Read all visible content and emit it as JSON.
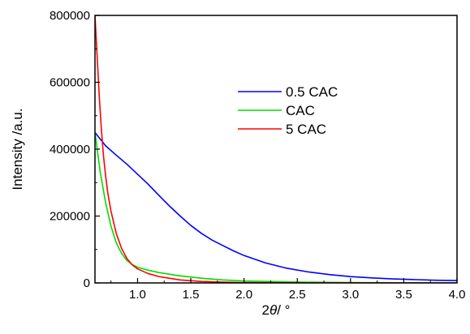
{
  "chart_data": {
    "type": "line",
    "xlabel_prefix": "2",
    "xlabel_symbol": "θ",
    "xlabel_suffix": "/ °",
    "ylabel": "Intensity /a.u.",
    "xlim": [
      0.6,
      4.0
    ],
    "ylim": [
      0,
      800000
    ],
    "x_ticks": [
      "1.0",
      "1.5",
      "2.0",
      "2.5",
      "3.0",
      "3.5",
      "4.0"
    ],
    "y_ticks": [
      "0",
      "200000",
      "400000",
      "600000",
      "800000"
    ],
    "legend_position": "upper-center",
    "grid": false,
    "series": [
      {
        "name": "0.5 CAC",
        "color": "#0000ff",
        "x": [
          0.6,
          0.7,
          0.8,
          0.9,
          1.0,
          1.1,
          1.2,
          1.3,
          1.4,
          1.5,
          1.6,
          1.7,
          1.8,
          1.9,
          2.0,
          2.2,
          2.4,
          2.6,
          2.8,
          3.0,
          3.2,
          3.4,
          3.6,
          3.8,
          4.0
        ],
        "y": [
          450000,
          410000,
          382000,
          355000,
          325000,
          295000,
          262000,
          230000,
          200000,
          172000,
          148000,
          128000,
          112000,
          96000,
          82000,
          60000,
          44000,
          33000,
          25000,
          19000,
          15000,
          12000,
          10000,
          8000,
          7000
        ]
      },
      {
        "name": "CAC",
        "color": "#00dd00",
        "x": [
          0.6,
          0.65,
          0.7,
          0.75,
          0.8,
          0.85,
          0.9,
          0.95,
          1.0,
          1.1,
          1.2,
          1.4,
          1.6,
          1.8,
          2.0,
          2.5,
          3.0,
          3.5,
          4.0
        ],
        "y": [
          450000,
          330000,
          240000,
          170000,
          120000,
          88000,
          67000,
          55000,
          47000,
          38000,
          31000,
          21000,
          14000,
          9000,
          6000,
          2500,
          1000,
          500,
          200
        ]
      },
      {
        "name": "5 CAC",
        "color": "#ff0000",
        "x": [
          0.6,
          0.62,
          0.64,
          0.66,
          0.68,
          0.7,
          0.72,
          0.75,
          0.8,
          0.85,
          0.9,
          0.95,
          1.0,
          1.1,
          1.2,
          1.4,
          1.6,
          1.8,
          2.0,
          2.5,
          3.0,
          3.5,
          4.0
        ],
        "y": [
          800000,
          680000,
          560000,
          460000,
          380000,
          320000,
          270000,
          215000,
          148000,
          103000,
          73000,
          54000,
          42000,
          28000,
          19000,
          9000,
          4500,
          2200,
          1000,
          300,
          100,
          0,
          0
        ]
      }
    ]
  }
}
